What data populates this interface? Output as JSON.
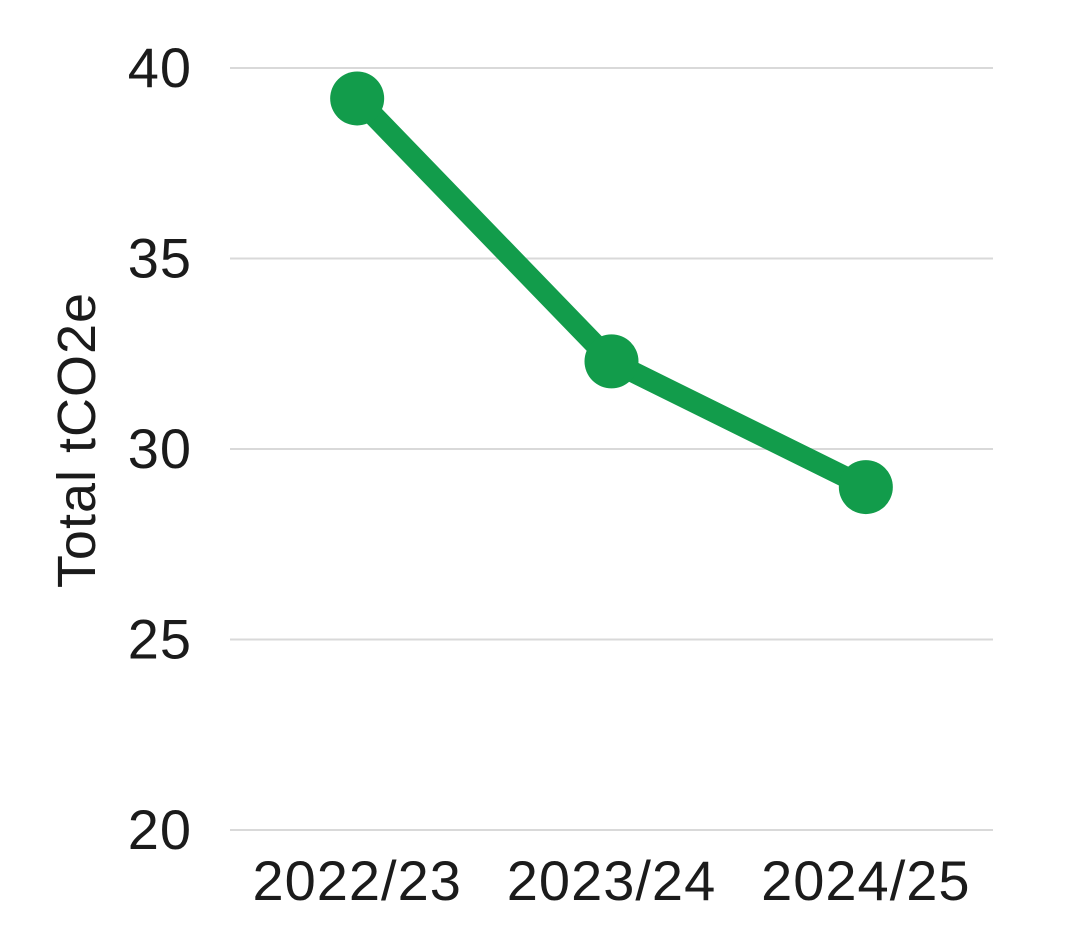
{
  "chart_data": {
    "type": "line",
    "title": "",
    "xlabel": "",
    "ylabel": "Total tCO2e",
    "categories": [
      "2022/23",
      "2023/24",
      "2024/25"
    ],
    "series": [
      {
        "name": "Total tCO2e",
        "values": [
          39.2,
          32.3,
          29.0
        ],
        "color": "#129C4B"
      }
    ],
    "ylim": [
      20,
      40
    ],
    "yticks": [
      40,
      35,
      30,
      25,
      20
    ],
    "grid": "horizontal-only",
    "gridline_color": "#d9d9d9",
    "text_color": "#1b1b1b",
    "background_color": "#ffffff",
    "legend_position": "none",
    "marker": "filled-circle"
  }
}
